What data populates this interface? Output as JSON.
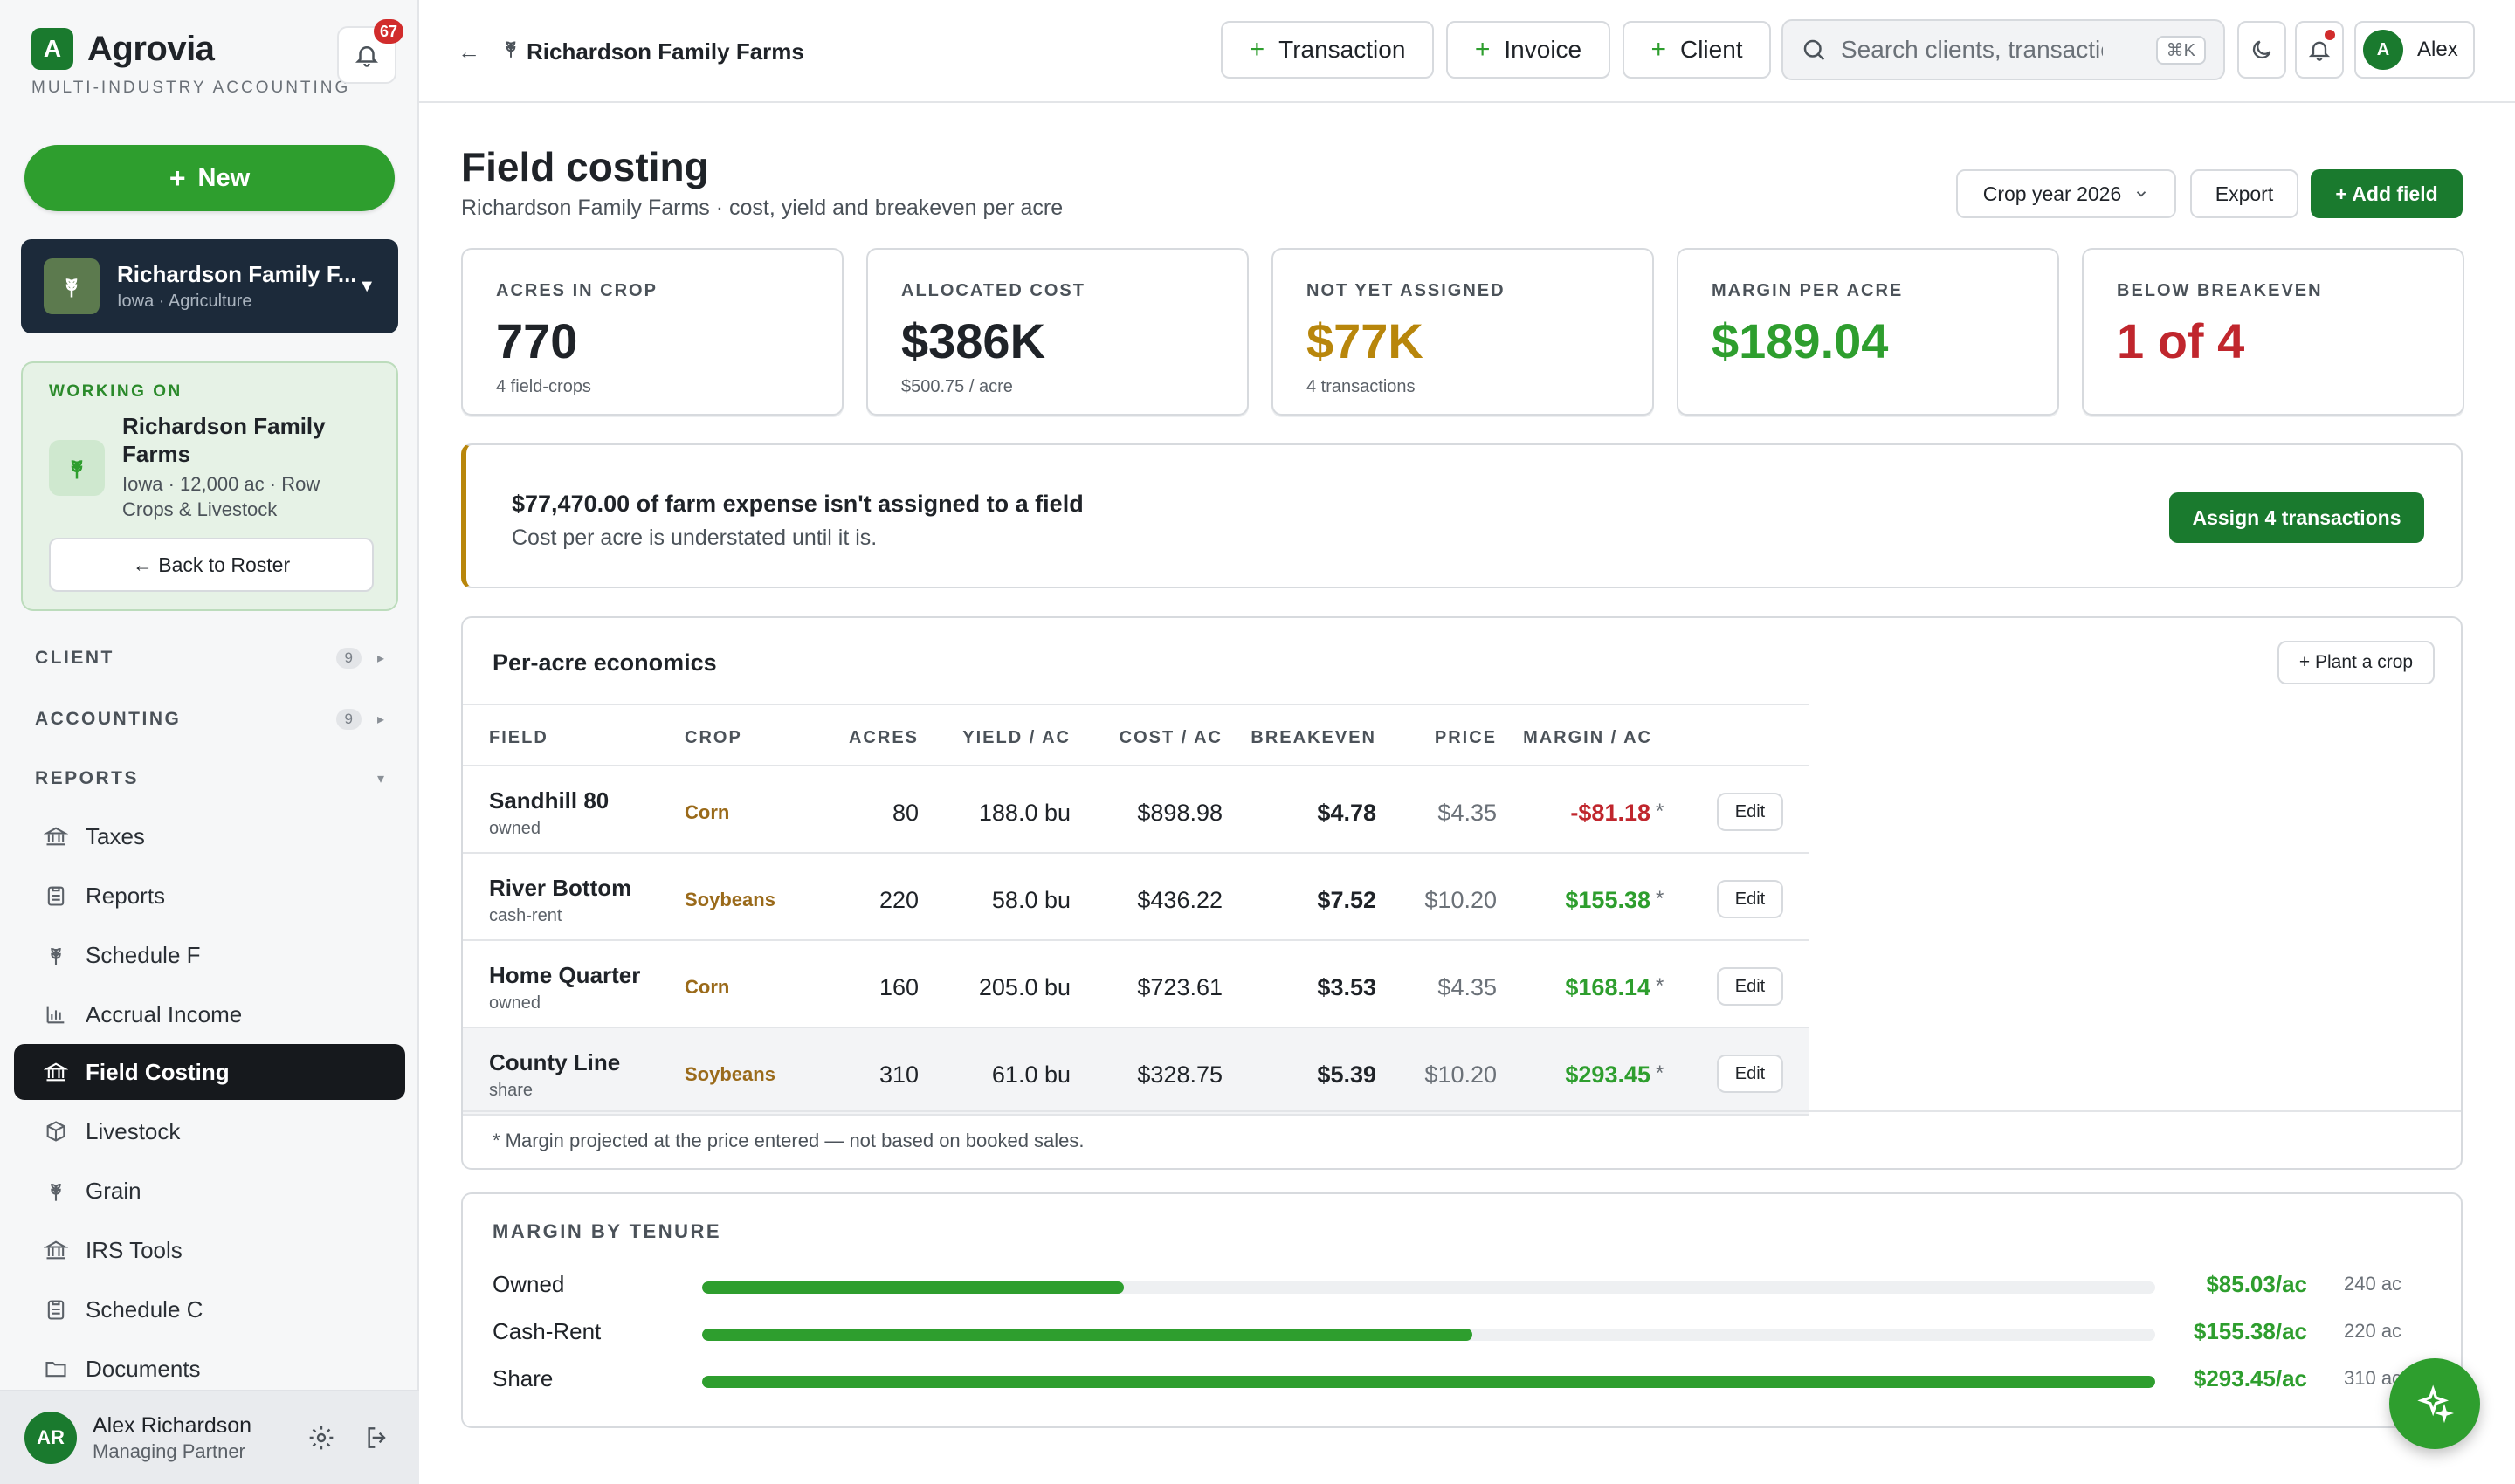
{
  "brand": {
    "name": "Agrovia",
    "tagline": "MULTI-INDUSTRY ACCOUNTING",
    "logo_letter": "A",
    "notifications": "67"
  },
  "sidebar": {
    "new_label": "New",
    "client_switch": {
      "name": "Richardson Family F...",
      "sub": "Iowa · Agriculture"
    },
    "working_on": {
      "label": "WORKING ON",
      "name": "Richardson Family Farms",
      "sub": "Iowa · 12,000 ac · Row Crops & Livestock",
      "back_label": "← Back to Roster"
    },
    "sections": [
      {
        "label": "CLIENT",
        "count": "9"
      },
      {
        "label": "ACCOUNTING",
        "count": "9"
      },
      {
        "label": "REPORTS"
      }
    ],
    "items": [
      {
        "label": "Taxes",
        "icon": "bank-icon"
      },
      {
        "label": "Reports",
        "icon": "clipboard-icon"
      },
      {
        "label": "Schedule F",
        "icon": "wheat-icon"
      },
      {
        "label": "Accrual Income",
        "icon": "bar-chart-icon"
      },
      {
        "label": "Field Costing",
        "icon": "bank-icon"
      },
      {
        "label": "Livestock",
        "icon": "box-icon"
      },
      {
        "label": "Grain",
        "icon": "wheat-icon"
      },
      {
        "label": "IRS Tools",
        "icon": "bank-icon"
      },
      {
        "label": "Schedule C",
        "icon": "clipboard-icon"
      },
      {
        "label": "Documents",
        "icon": "folder-icon"
      }
    ],
    "user": {
      "initials": "AR",
      "name": "Alex Richardson",
      "role": "Managing Partner"
    }
  },
  "topbar": {
    "breadcrumb": "Richardson Family Farms",
    "buttons": [
      "Transaction",
      "Invoice",
      "Client"
    ],
    "search_placeholder": "Search clients, transactions",
    "shortcut": "⌘K",
    "user_initial": "A",
    "user_name": "Alex"
  },
  "page": {
    "title": "Field costing",
    "subtitle": "Richardson Family Farms · cost, yield and breakeven per acre",
    "crop_year": "Crop year 2026",
    "export_label": "Export",
    "add_field_label": "+ Add field"
  },
  "stats": [
    {
      "label": "ACRES IN CROP",
      "value": "770",
      "sub": "4 field-crops",
      "color": "#1f2328"
    },
    {
      "label": "ALLOCATED COST",
      "value": "$386K",
      "sub": "$500.75 / acre",
      "color": "#1f2328"
    },
    {
      "label": "NOT YET ASSIGNED",
      "value": "$77K",
      "sub": "4 transactions",
      "color": "#b8860b"
    },
    {
      "label": "MARGIN PER ACRE",
      "value": "$189.04",
      "sub": "",
      "color": "#2e9e2e"
    },
    {
      "label": "BELOW BREAKEVEN",
      "value": "1 of 4",
      "sub": "",
      "color": "#c0262d"
    }
  ],
  "alert": {
    "title": "$77,470.00 of farm expense isn't assigned to a field",
    "sub": "Cost per acre is understated until it is.",
    "button": "Assign 4 transactions"
  },
  "economics": {
    "title": "Per-acre economics",
    "plant_label": "+ Plant a crop",
    "columns": [
      "FIELD",
      "CROP",
      "ACRES",
      "YIELD / AC",
      "COST / AC",
      "BREAKEVEN",
      "PRICE",
      "MARGIN / AC"
    ],
    "rows": [
      {
        "field": "Sandhill 80",
        "tenure": "owned",
        "crop": "Corn",
        "acres": "80",
        "yield": "188.0 bu",
        "cost": "$898.98",
        "breakeven": "$4.78",
        "price": "$4.35",
        "margin": "-$81.18",
        "negative": true
      },
      {
        "field": "River Bottom",
        "tenure": "cash-rent",
        "crop": "Soybeans",
        "acres": "220",
        "yield": "58.0 bu",
        "cost": "$436.22",
        "breakeven": "$7.52",
        "price": "$10.20",
        "margin": "$155.38",
        "negative": false
      },
      {
        "field": "Home Quarter",
        "tenure": "owned",
        "crop": "Corn",
        "acres": "160",
        "yield": "205.0 bu",
        "cost": "$723.61",
        "breakeven": "$3.53",
        "price": "$4.35",
        "margin": "$168.14",
        "negative": false
      },
      {
        "field": "County Line",
        "tenure": "share",
        "crop": "Soybeans",
        "acres": "310",
        "yield": "61.0 bu",
        "cost": "$328.75",
        "breakeven": "$5.39",
        "price": "$10.20",
        "margin": "$293.45",
        "negative": false
      }
    ],
    "star": "*",
    "edit_label": "Edit",
    "footnote": "* Margin projected at the price entered — not based on booked sales."
  },
  "tenure": {
    "title": "MARGIN BY TENURE",
    "rows": [
      {
        "label": "Owned",
        "value": "$85.03/ac",
        "acres": "240 ac",
        "fraction": 0.29
      },
      {
        "label": "Cash-Rent",
        "value": "$155.38/ac",
        "acres": "220 ac",
        "fraction": 0.53
      },
      {
        "label": "Share",
        "value": "$293.45/ac",
        "acres": "310 ac",
        "fraction": 1.0
      }
    ]
  },
  "colors": {
    "accent": "#2e9e2e",
    "brand_dark": "#1a7a2e",
    "warning": "#b8860b",
    "danger": "#c0262d"
  }
}
